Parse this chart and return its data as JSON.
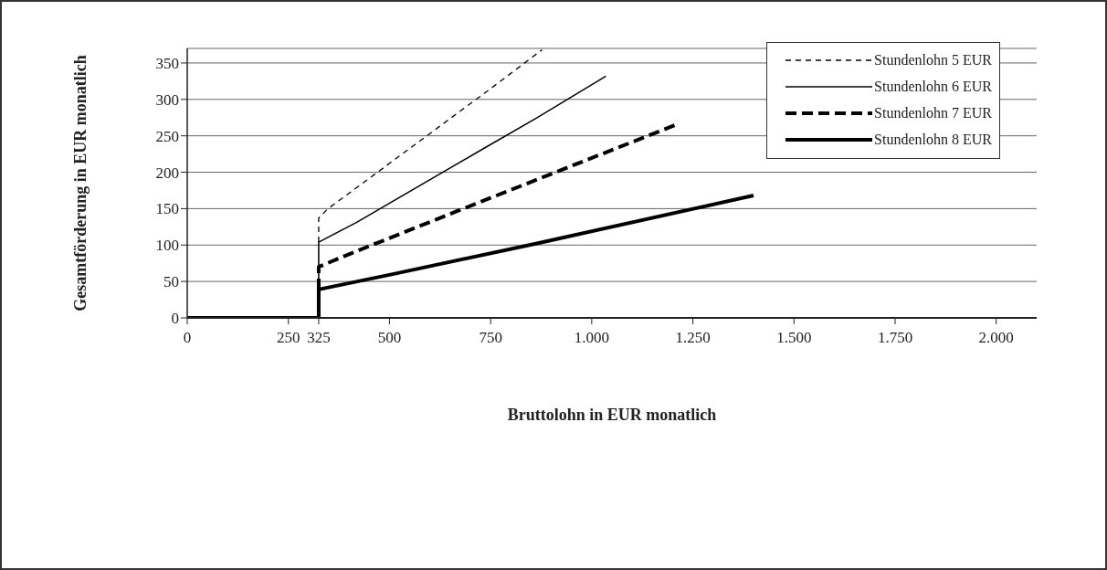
{
  "chart_data": {
    "type": "line",
    "xlabel": "Bruttolohn in EUR monatlich",
    "ylabel": "Gesamtförderung in EUR monatlich",
    "xlim": [
      0,
      2100
    ],
    "xticks": [
      0,
      250,
      {
        "value": 325,
        "label": "325"
      },
      500,
      750,
      {
        "value": 1000,
        "label": "1.000"
      },
      {
        "value": 1250,
        "label": "1.250"
      },
      {
        "value": 1500,
        "label": "1.500"
      },
      {
        "value": 1750,
        "label": "1.750"
      },
      {
        "value": 2000,
        "label": "2.000"
      }
    ],
    "ylim": [
      0,
      370
    ],
    "yticks": [
      0,
      50,
      100,
      150,
      200,
      250,
      300,
      350
    ],
    "grid": "y",
    "legend": "top right",
    "marker": "none",
    "series": [
      {
        "name": "Stundenlohn 5 EUR",
        "color": "#000000",
        "line_style": "dashed",
        "x": [
          325,
          325,
          346,
          741,
          877
        ],
        "values": [
          104,
          137,
          149,
          311,
          368
        ]
      },
      {
        "name": "Stundenlohn 6 EUR",
        "color": "#000000",
        "line_style": "solid",
        "x": [
          325,
          325,
          418,
          734,
          862,
          1035
        ],
        "values": [
          0,
          104,
          131,
          233,
          274,
          332
        ]
      },
      {
        "name": "Stundenlohn 7 EUR",
        "color": "#000000",
        "line_style": "dashed",
        "x": [
          325,
          325,
          380,
          719,
          1212
        ],
        "values": [
          39,
          70,
          83,
          158,
          266
        ]
      },
      {
        "name": "Stundenlohn 8 EUR",
        "color": "#000000",
        "line_style": "solid",
        "x": [
          0,
          325,
          325,
          508,
          862,
          1400
        ],
        "values": [
          0,
          0,
          39,
          60,
          102,
          168
        ]
      }
    ]
  }
}
